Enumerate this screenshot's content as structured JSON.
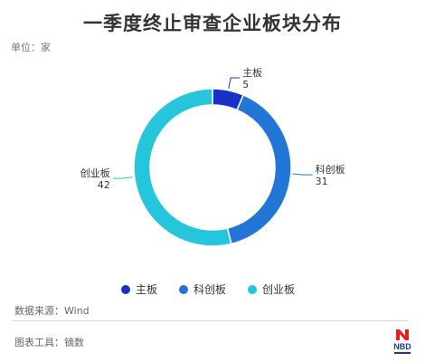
{
  "title": "一季度终止审查企业板块分布",
  "unit": "单位：家",
  "source": "数据来源：Wind",
  "tool": "图表工具：镝数",
  "logo_text": "NBD",
  "chart_data": {
    "type": "pie",
    "donut": true,
    "categories": [
      "主板",
      "科创板",
      "创业板"
    ],
    "values": [
      5,
      31,
      42
    ],
    "colors": [
      "#1832c8",
      "#2176d6",
      "#25c6dc"
    ],
    "legend_placement": "bottom"
  }
}
